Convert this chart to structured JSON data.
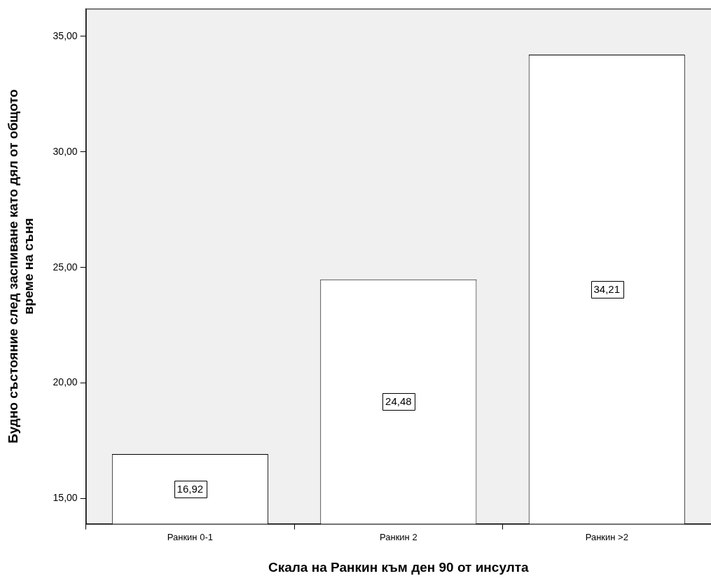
{
  "chart_data": {
    "type": "bar",
    "xlabel": "Скала на Ранкин към ден 90 от инсулта",
    "ylabel": "Будно състояние след заспиване като дял от общото\nвреме на съня",
    "categories": [
      "Ранкин 0-1",
      "Ранкин 2",
      "Ранкин >2"
    ],
    "values": [
      16.92,
      24.48,
      34.21
    ],
    "value_labels": [
      "16,92",
      "24,48",
      "34,21"
    ],
    "color": "#ffffff",
    "ylim": [
      13.9,
      36.2
    ],
    "yticks": [
      {
        "value": 15,
        "label": "15,00"
      },
      {
        "value": 20,
        "label": "20,00"
      },
      {
        "value": 25,
        "label": "25,00"
      },
      {
        "value": 30,
        "label": "30,00"
      },
      {
        "value": 35,
        "label": "35,00"
      }
    ],
    "grid": false,
    "legend": false
  }
}
